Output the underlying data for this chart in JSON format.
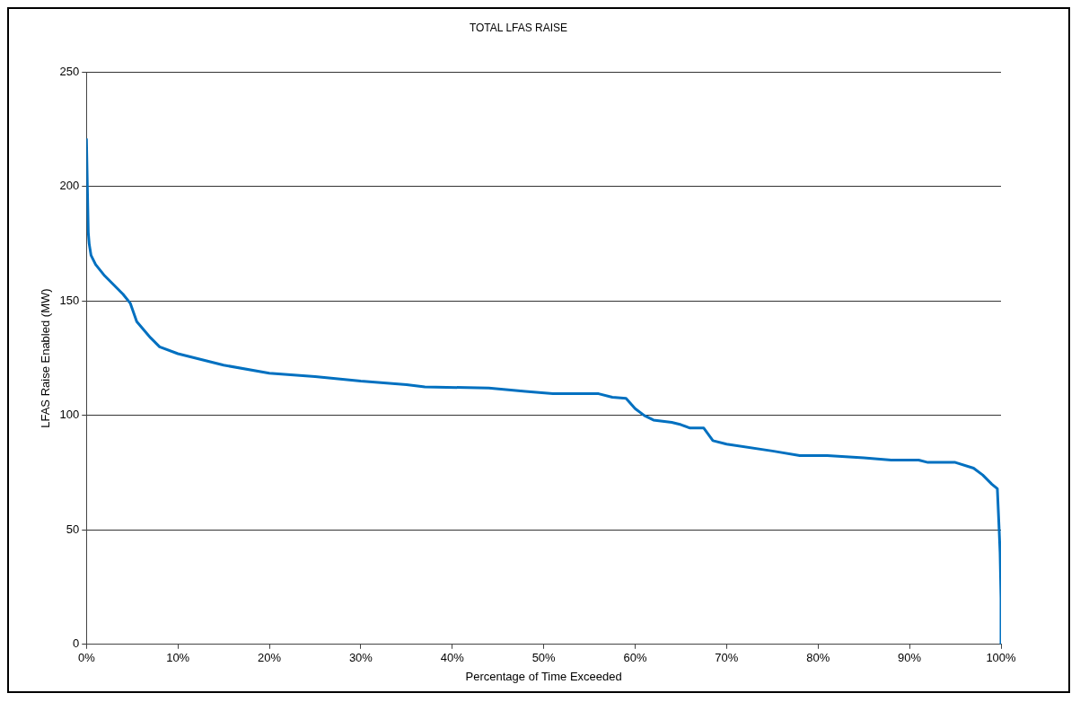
{
  "chart_data": {
    "type": "line",
    "title": "TOTAL LFAS RAISE",
    "xlabel": "Percentage of Time Exceeded",
    "ylabel": "LFAS Raise Enabled (MW)",
    "xlim": [
      0,
      100
    ],
    "xticks": [
      {
        "value": 0,
        "label": "0%"
      },
      {
        "value": 10,
        "label": "10%"
      },
      {
        "value": 20,
        "label": "20%"
      },
      {
        "value": 30,
        "label": "30%"
      },
      {
        "value": 40,
        "label": "40%"
      },
      {
        "value": 50,
        "label": "50%"
      },
      {
        "value": 60,
        "label": "60%"
      },
      {
        "value": 70,
        "label": "70%"
      },
      {
        "value": 80,
        "label": "80%"
      },
      {
        "value": 90,
        "label": "90%"
      },
      {
        "value": 100,
        "label": "100%"
      }
    ],
    "ylim": [
      0,
      250
    ],
    "yticks": [
      0,
      50,
      100,
      150,
      200,
      250
    ],
    "grid": "y",
    "legend": false,
    "marker": "none",
    "line_style": "solid",
    "series": [
      {
        "color": "#0070c0",
        "x": [
          0,
          0.1,
          0.2,
          0.3,
          0.5,
          1,
          2,
          3,
          4,
          4.8,
          5.5,
          7,
          8,
          10,
          15,
          20,
          25,
          30,
          35,
          37,
          44,
          48,
          51,
          56,
          57.5,
          59,
          60,
          61,
          62,
          64,
          65,
          66,
          67.5,
          68.5,
          70,
          75,
          78,
          81,
          83,
          85,
          88,
          91,
          92,
          95,
          97,
          98,
          99,
          99.6,
          99.8,
          99.9,
          100,
          100
        ],
        "values": [
          221,
          200,
          180,
          175,
          170,
          166,
          161,
          157,
          153,
          149,
          141,
          134,
          130,
          127,
          122,
          118.5,
          117,
          115,
          113.5,
          112.5,
          112,
          110.5,
          109.5,
          109.5,
          108,
          107.5,
          103,
          100,
          98,
          97,
          96,
          94.5,
          94.5,
          89,
          87.5,
          84.5,
          82.5,
          82.5,
          82,
          81.5,
          80.5,
          80.5,
          79.5,
          79.5,
          77,
          74,
          70,
          68,
          50,
          40,
          20,
          0
        ]
      }
    ]
  }
}
